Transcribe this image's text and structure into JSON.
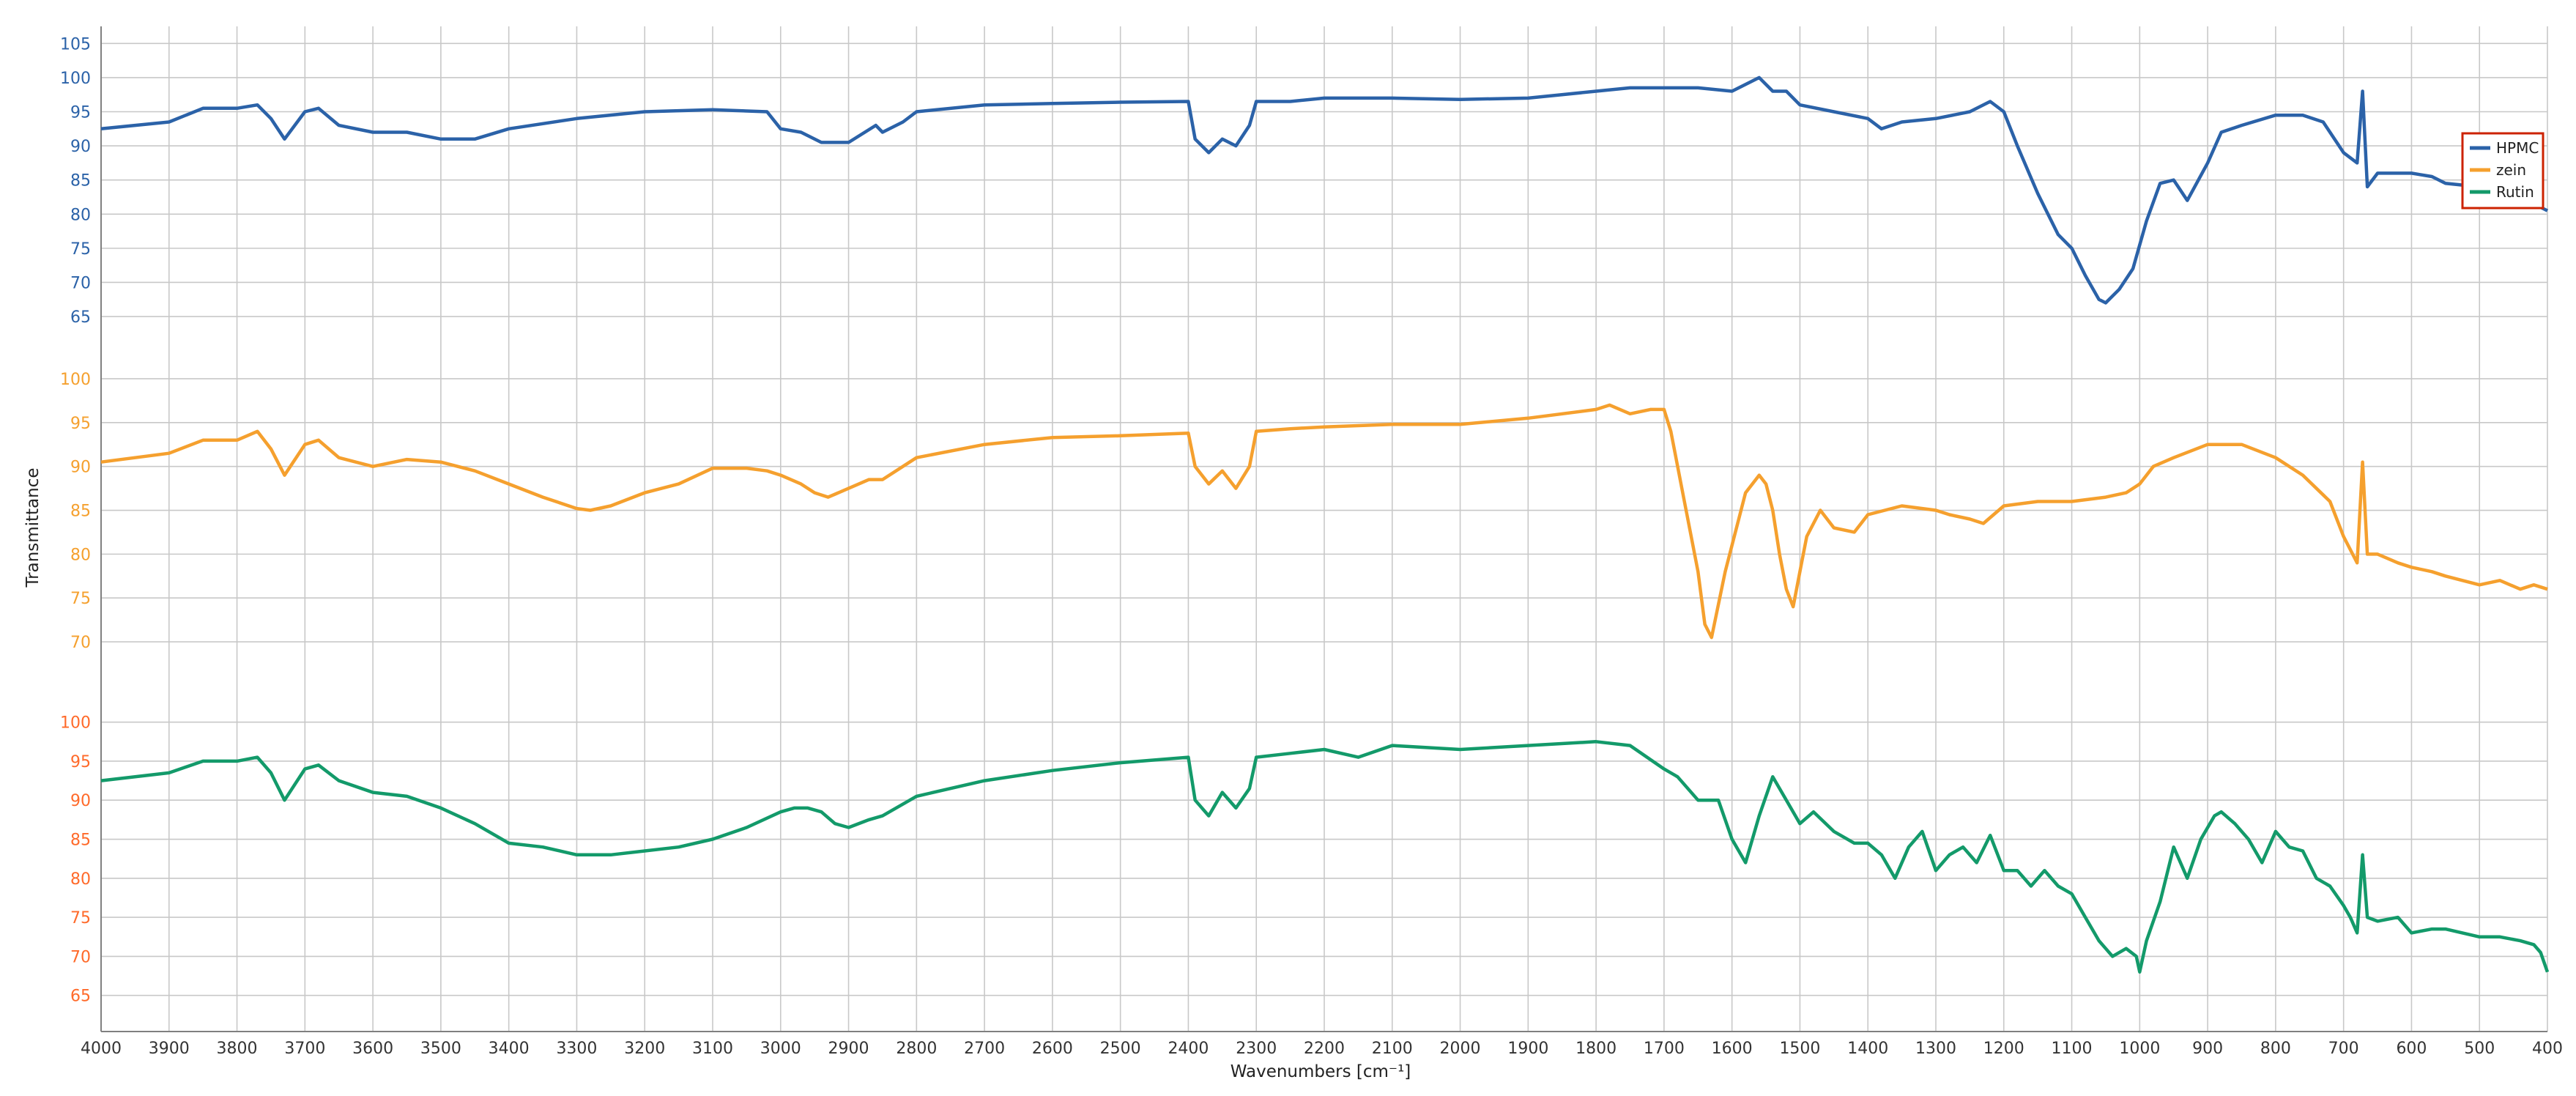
{
  "chart_data": {
    "type": "line",
    "title": "",
    "xlabel": "Wavenumbers [cm⁻¹]",
    "ylabel": "Transmittance",
    "xlim": [
      4000,
      400
    ],
    "x_ticks": [
      "4000",
      "3900",
      "3800",
      "3700",
      "3600",
      "3500",
      "3400",
      "3300",
      "3200",
      "3100",
      "3000",
      "2900",
      "2800",
      "2700",
      "2600",
      "2500",
      "2400",
      "2300",
      "2200",
      "2100",
      "2000",
      "1900",
      "1800",
      "1700",
      "1600",
      "1500",
      "1400",
      "1300",
      "1200",
      "1100",
      "1000",
      "900",
      "800",
      "700",
      "600",
      "500",
      "400"
    ],
    "grid": true,
    "legend": {
      "position": "top-right",
      "entries": [
        "HPMC",
        "zein",
        "Rutin"
      ]
    },
    "panels": [
      {
        "series_name": "HPMC",
        "color": "#2b62a8",
        "tick_color": "#2b62a8",
        "ylim": [
          62,
          106
        ],
        "y_ticks": [
          "105",
          "100",
          "95",
          "90",
          "85",
          "80",
          "75",
          "70",
          "65"
        ],
        "x": [
          4000,
          3900,
          3850,
          3800,
          3770,
          3750,
          3730,
          3700,
          3680,
          3650,
          3600,
          3550,
          3500,
          3450,
          3400,
          3300,
          3200,
          3100,
          3020,
          3000,
          2970,
          2940,
          2900,
          2860,
          2850,
          2820,
          2800,
          2700,
          2600,
          2500,
          2400,
          2390,
          2370,
          2350,
          2330,
          2310,
          2300,
          2250,
          2200,
          2100,
          2000,
          1900,
          1800,
          1750,
          1700,
          1650,
          1600,
          1560,
          1540,
          1520,
          1500,
          1450,
          1400,
          1380,
          1350,
          1300,
          1250,
          1220,
          1200,
          1180,
          1150,
          1120,
          1100,
          1080,
          1060,
          1050,
          1030,
          1010,
          990,
          970,
          950,
          930,
          900,
          880,
          850,
          800,
          760,
          730,
          700,
          680,
          672,
          665,
          650,
          620,
          600,
          570,
          550,
          500,
          470,
          440,
          420,
          400
        ],
        "y": [
          92.5,
          93.5,
          95.5,
          95.5,
          96,
          94,
          91,
          95,
          95.5,
          93,
          92,
          92,
          91,
          91,
          92.5,
          94,
          95,
          95.3,
          95,
          92.5,
          92,
          90.5,
          90.5,
          93,
          92,
          93.5,
          95,
          96,
          96.2,
          96.4,
          96.5,
          91,
          89,
          91,
          90,
          93,
          96.5,
          96.5,
          97,
          97,
          96.8,
          97,
          98,
          98.5,
          98.5,
          98.5,
          98,
          100,
          98,
          98,
          96,
          95,
          94,
          92.5,
          93.5,
          94,
          95,
          96.5,
          95,
          90,
          83,
          77,
          75,
          71,
          67.5,
          67,
          69,
          72,
          79,
          84.5,
          85,
          82,
          87.5,
          92,
          93,
          94.5,
          94.5,
          93.5,
          89,
          87.5,
          98,
          84,
          86,
          86,
          86,
          85.5,
          84.5,
          84,
          82,
          82,
          81.5,
          80.5
        ]
      },
      {
        "series_name": "zein",
        "color": "#f5a02e",
        "tick_color": "#f5a02e",
        "ylim": [
          68,
          101
        ],
        "y_ticks": [
          "100",
          "95",
          "90",
          "85",
          "80",
          "75",
          "70"
        ],
        "x": [
          4000,
          3900,
          3850,
          3800,
          3770,
          3750,
          3730,
          3700,
          3680,
          3650,
          3600,
          3550,
          3500,
          3450,
          3400,
          3350,
          3300,
          3280,
          3250,
          3200,
          3150,
          3100,
          3050,
          3020,
          3000,
          2970,
          2950,
          2930,
          2900,
          2870,
          2850,
          2800,
          2700,
          2600,
          2500,
          2400,
          2390,
          2370,
          2350,
          2330,
          2310,
          2300,
          2250,
          2200,
          2100,
          2000,
          1900,
          1800,
          1780,
          1750,
          1720,
          1700,
          1690,
          1670,
          1650,
          1640,
          1630,
          1610,
          1580,
          1560,
          1550,
          1540,
          1530,
          1520,
          1510,
          1500,
          1490,
          1470,
          1450,
          1420,
          1400,
          1350,
          1300,
          1280,
          1250,
          1230,
          1200,
          1150,
          1100,
          1050,
          1020,
          1000,
          980,
          950,
          900,
          850,
          800,
          760,
          720,
          700,
          680,
          672,
          665,
          650,
          620,
          600,
          570,
          550,
          500,
          470,
          440,
          420,
          400
        ],
        "y": [
          90.5,
          91.5,
          93,
          93,
          94,
          92,
          89,
          92.5,
          93,
          91,
          90,
          90.8,
          90.5,
          89.5,
          88,
          86.5,
          85.2,
          85,
          85.5,
          87,
          88,
          89.8,
          89.8,
          89.5,
          89,
          88,
          87,
          86.5,
          87.5,
          88.5,
          88.5,
          91,
          92.5,
          93.3,
          93.5,
          93.8,
          90,
          88,
          89.5,
          87.5,
          90,
          94,
          94.3,
          94.5,
          94.8,
          94.8,
          95.5,
          96.5,
          97,
          96,
          96.5,
          96.5,
          94,
          86,
          78,
          72,
          70.5,
          78,
          87,
          89,
          88,
          85,
          80,
          76,
          74,
          78,
          82,
          85,
          83,
          82.5,
          84.5,
          85.5,
          85,
          84.5,
          84,
          83.5,
          85.5,
          86,
          86,
          86.5,
          87,
          88,
          90,
          91,
          92.5,
          92.5,
          91,
          89,
          86,
          82,
          79,
          90.5,
          80,
          80,
          79,
          78.5,
          78,
          77.5,
          76.5,
          77,
          76,
          76.5,
          76
        ]
      },
      {
        "series_name": "Rutin",
        "color": "#139a6a",
        "tick_color": "#ff6a2a",
        "ylim": [
          63,
          101
        ],
        "y_ticks": [
          "100",
          "95",
          "90",
          "85",
          "80",
          "75",
          "70",
          "65"
        ],
        "x": [
          4000,
          3900,
          3850,
          3800,
          3770,
          3750,
          3730,
          3700,
          3680,
          3650,
          3600,
          3550,
          3500,
          3450,
          3400,
          3350,
          3300,
          3250,
          3200,
          3150,
          3100,
          3050,
          3000,
          2980,
          2960,
          2940,
          2920,
          2900,
          2870,
          2850,
          2800,
          2700,
          2600,
          2500,
          2400,
          2390,
          2370,
          2350,
          2330,
          2310,
          2300,
          2250,
          2200,
          2150,
          2100,
          2000,
          1900,
          1800,
          1750,
          1700,
          1680,
          1650,
          1620,
          1600,
          1580,
          1560,
          1540,
          1520,
          1500,
          1480,
          1450,
          1420,
          1400,
          1380,
          1360,
          1340,
          1320,
          1300,
          1280,
          1260,
          1240,
          1220,
          1200,
          1180,
          1160,
          1140,
          1120,
          1100,
          1080,
          1060,
          1050,
          1040,
          1020,
          1005,
          1000,
          990,
          970,
          950,
          930,
          910,
          890,
          880,
          860,
          840,
          820,
          800,
          780,
          760,
          740,
          720,
          700,
          690,
          680,
          672,
          665,
          650,
          620,
          600,
          570,
          550,
          500,
          470,
          440,
          420,
          410,
          400
        ],
        "y": [
          92.5,
          93.5,
          95,
          95,
          95.5,
          93.5,
          90,
          94,
          94.5,
          92.5,
          91,
          90.5,
          89,
          87,
          84.5,
          84,
          83,
          83,
          83.5,
          84,
          85,
          86.5,
          88.5,
          89,
          89,
          88.5,
          87,
          86.5,
          87.5,
          88,
          90.5,
          92.5,
          93.8,
          94.8,
          95.5,
          90,
          88,
          91,
          89,
          91.5,
          95.5,
          96,
          96.5,
          95.5,
          97,
          96.5,
          97,
          97.5,
          97,
          94,
          93,
          90,
          90,
          85,
          82,
          88,
          93,
          90,
          87,
          88.5,
          86,
          84.5,
          84.5,
          83,
          80,
          84,
          86,
          81,
          83,
          84,
          82,
          85.5,
          81,
          81,
          79,
          81,
          79,
          78,
          75,
          72,
          71,
          70,
          71,
          70,
          68,
          72,
          77,
          84,
          80,
          85,
          88,
          88.5,
          87,
          85,
          82,
          86,
          84,
          83.5,
          80,
          79,
          76.5,
          75,
          73,
          83,
          75,
          74.5,
          75,
          73,
          73.5,
          73.5,
          72.5,
          72.5,
          72,
          71.5,
          70.5,
          68
        ]
      }
    ]
  }
}
